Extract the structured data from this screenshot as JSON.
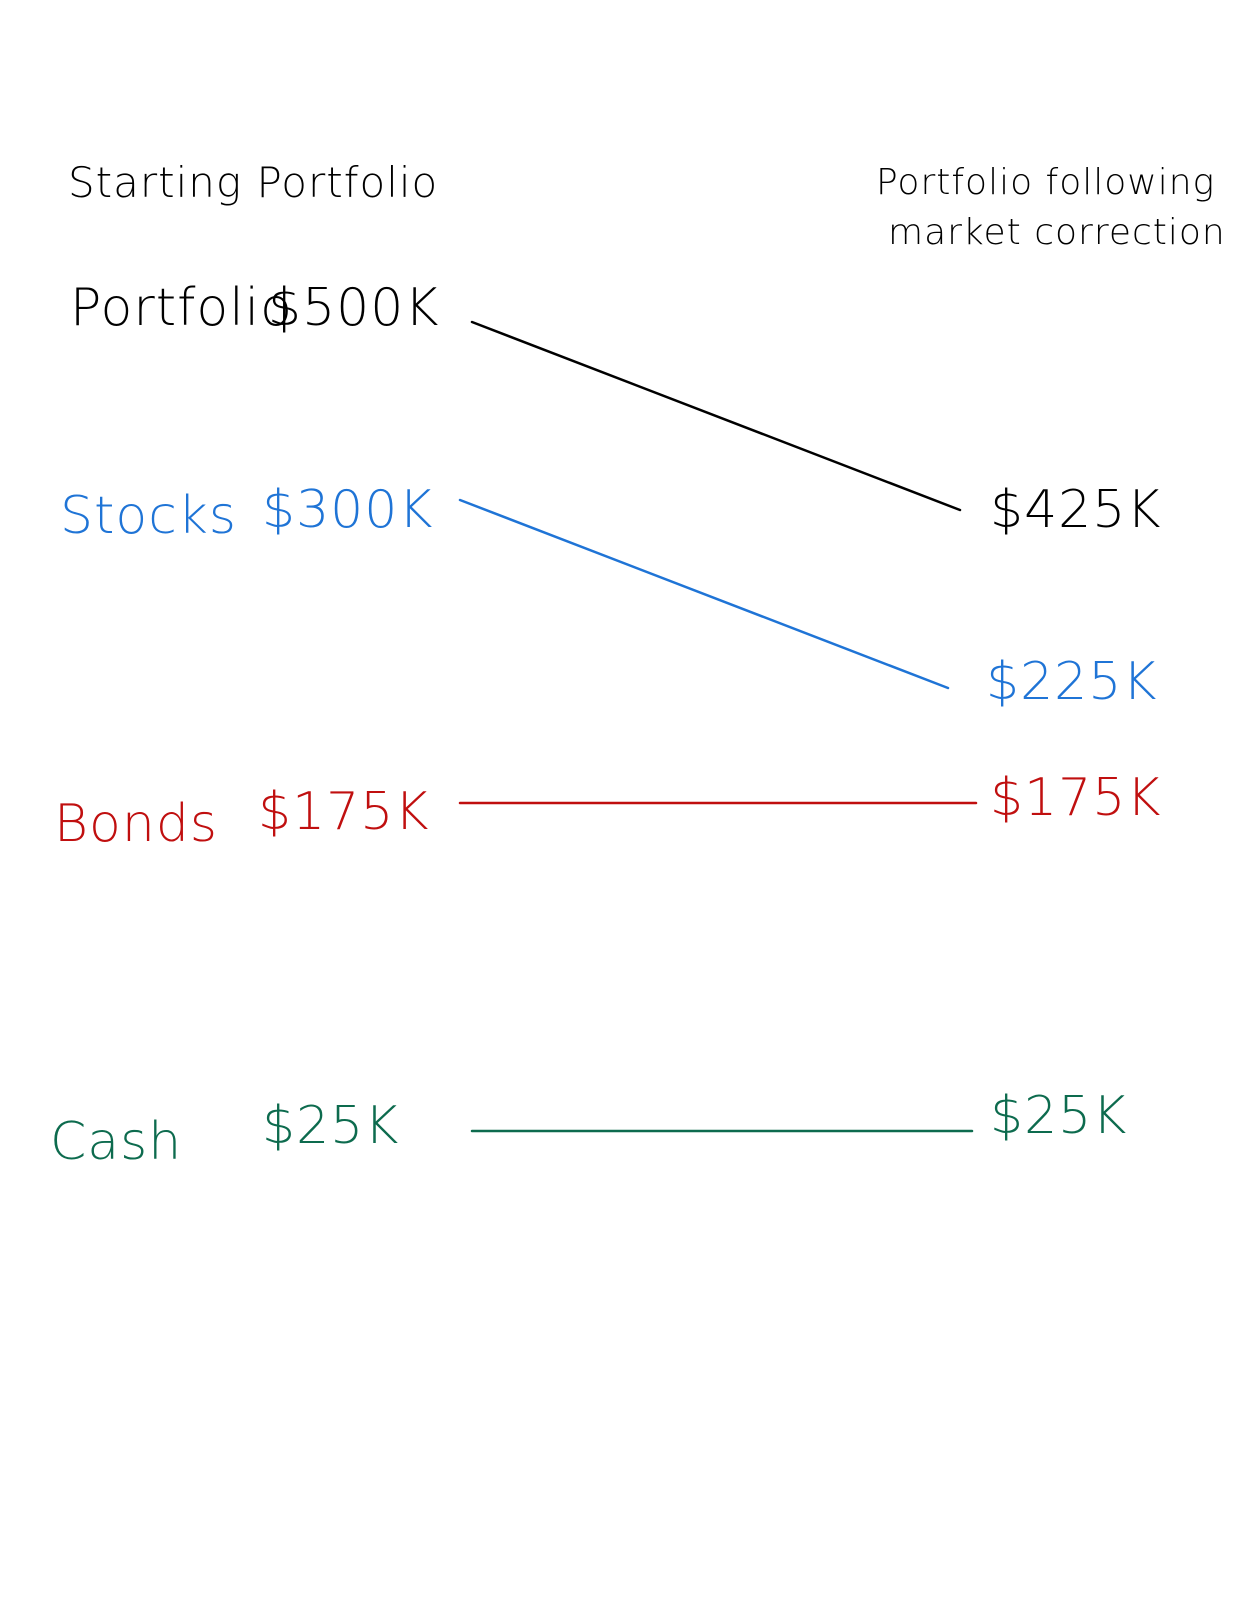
{
  "headings": {
    "start": "Starting Portfolio",
    "end_line1": "Portfolio following",
    "end_line2": "market correction"
  },
  "rows": [
    {
      "key": "portfolio",
      "label": "Portfolio",
      "start_value": "$500K",
      "end_value": "$425K",
      "color": "#000000"
    },
    {
      "key": "stocks",
      "label": "Stocks",
      "start_value": "$300K",
      "end_value": "$225K",
      "color": "#1f74d6"
    },
    {
      "key": "bonds",
      "label": "Bonds",
      "start_value": "$175K",
      "end_value": "$175K",
      "color": "#c00f0f"
    },
    {
      "key": "cash",
      "label": "Cash",
      "start_value": "$25K",
      "end_value": "$25K",
      "color": "#0d6b4e"
    }
  ]
}
